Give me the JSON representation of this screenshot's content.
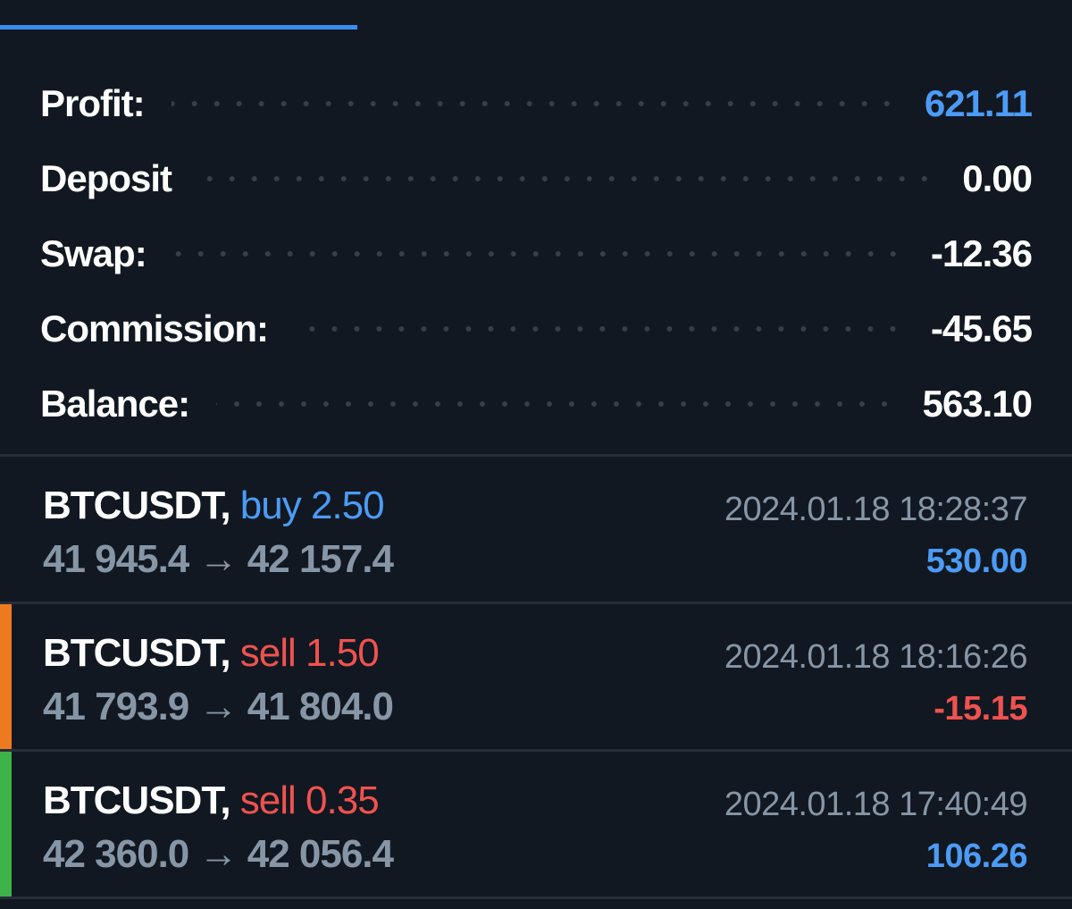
{
  "summary": [
    {
      "label": "Profit:",
      "value": "621.11",
      "value_color": "#4c9bf5"
    },
    {
      "label": "Deposit",
      "value": "0.00",
      "value_color": "#ffffff"
    },
    {
      "label": "Swap:",
      "value": "-12.36",
      "value_color": "#ffffff"
    },
    {
      "label": "Commission:",
      "value": "-45.65",
      "value_color": "#ffffff"
    },
    {
      "label": "Balance:",
      "value": "563.10",
      "value_color": "#ffffff"
    }
  ],
  "trades": [
    {
      "symbol": "BTCUSDT,",
      "side": "buy 2.50",
      "side_color": "#4c9bf5",
      "time": "2024.01.18 18:28:37",
      "prices": "41 945.4 → 42 157.4",
      "profit": "530.00",
      "profit_color": "#4c9bf5",
      "marker": null
    },
    {
      "symbol": "BTCUSDT,",
      "side": "sell 1.50",
      "side_color": "#f0524f",
      "time": "2024.01.18 18:16:26",
      "prices": "41 793.9 → 41 804.0",
      "profit": "-15.15",
      "profit_color": "#f0524f",
      "marker": "#ee7a1f"
    },
    {
      "symbol": "BTCUSDT,",
      "side": "sell 0.35",
      "side_color": "#f0524f",
      "time": "2024.01.18 17:40:49",
      "prices": "42 360.0 → 42 056.4",
      "profit": "106.26",
      "profit_color": "#4c9bf5",
      "marker": "#3cb449"
    }
  ]
}
